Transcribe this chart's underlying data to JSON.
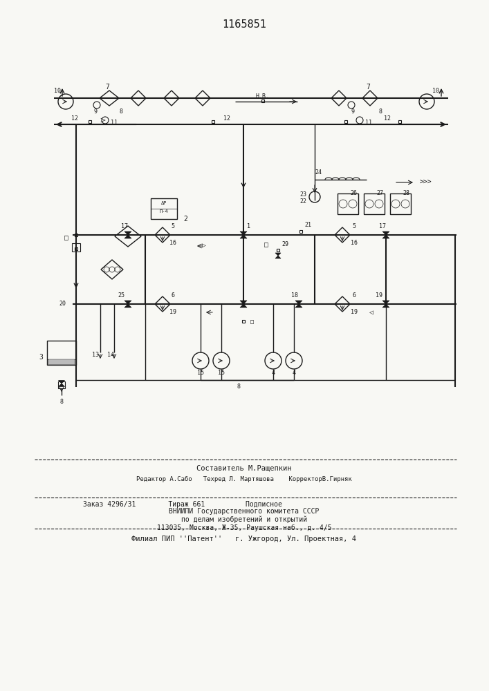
{
  "title": "1165851",
  "bg_color": "#f8f8f4",
  "line_color": "#1a1a1a",
  "footer_lines": [
    "Составитель М.Ращепкин",
    "Редактор А.Сабо   Техред Л. Мартяшова    КорректорВ.Гирняк",
    "Заказ 4296/31        Тираж 661          Подписное",
    "ВНИИПИ Государственного комитета СССР",
    "по делам изобретений и открытий",
    "113035, Москва, Ж-35, Раушская наб., д. 4/5",
    "Филиал ПИП ''Патент''   г. Ужгород, Ул. Проектная, 4"
  ]
}
